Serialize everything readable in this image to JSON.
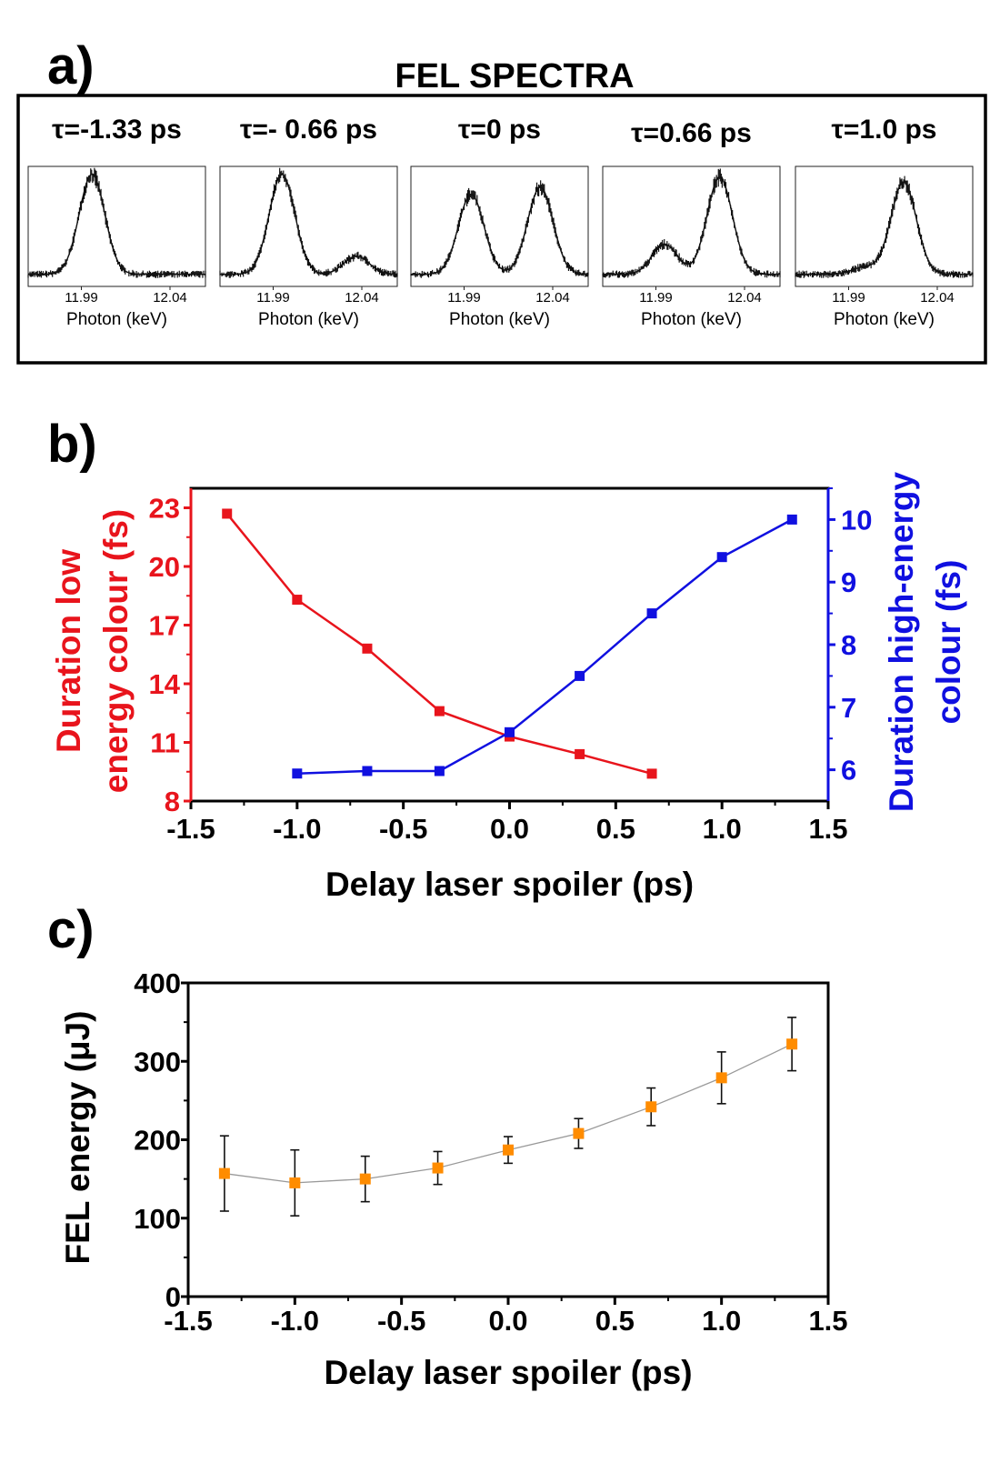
{
  "chart_data": [
    {
      "panel_label": "a)",
      "title": "FEL SPECTRA",
      "type": "line",
      "colors": {
        "frame": "#000000",
        "data": "#111111"
      },
      "subplots": [
        {
          "label": "τ=-1.33 ps",
          "xlabel": "Photon (keV)",
          "xticks": [
            "11.99",
            "12.04"
          ],
          "xlim": [
            11.96,
            12.06
          ],
          "peaks": [
            {
              "center_keV": 11.996,
              "relative_intensity": 1.0
            }
          ]
        },
        {
          "label": "τ=- 0.66 ps",
          "xlabel": "Photon (keV)",
          "xticks": [
            "11.99",
            "12.04"
          ],
          "xlim": [
            11.96,
            12.06
          ],
          "peaks": [
            {
              "center_keV": 11.995,
              "relative_intensity": 1.0
            },
            {
              "center_keV": 12.037,
              "relative_intensity": 0.18
            }
          ]
        },
        {
          "label": "τ=0 ps",
          "xlabel": "Photon (keV)",
          "xticks": [
            "11.99",
            "12.04"
          ],
          "xlim": [
            11.96,
            12.06
          ],
          "peaks": [
            {
              "center_keV": 11.994,
              "relative_intensity": 0.8
            },
            {
              "center_keV": 12.033,
              "relative_intensity": 0.87
            }
          ]
        },
        {
          "label": "τ=0.66 ps",
          "xlabel": "Photon (keV)",
          "xticks": [
            "11.99",
            "12.04"
          ],
          "xlim": [
            11.96,
            12.06
          ],
          "peaks": [
            {
              "center_keV": 11.995,
              "relative_intensity": 0.3
            },
            {
              "center_keV": 12.026,
              "relative_intensity": 0.97
            }
          ]
        },
        {
          "label": "τ=1.0 ps",
          "xlabel": "Photon (keV)",
          "xticks": [
            "11.99",
            "12.04"
          ],
          "xlim": [
            11.96,
            12.06
          ],
          "peaks": [
            {
              "center_keV": 11.999,
              "relative_intensity": 0.07
            },
            {
              "center_keV": 12.021,
              "relative_intensity": 0.92
            }
          ]
        }
      ]
    },
    {
      "panel_label": "b)",
      "type": "line",
      "xlabel": "Delay laser spoiler (ps)",
      "xlim": [
        -1.5,
        1.5
      ],
      "xticks": [
        "-1.5",
        "-1.0",
        "-0.5",
        "0.0",
        "0.5",
        "1.0",
        "1.5"
      ],
      "y_left": {
        "label_lines": [
          "Duration low",
          "energy colour (fs)"
        ],
        "ylim": [
          8,
          24
        ],
        "ticks": [
          "8",
          "11",
          "14",
          "17",
          "20",
          "23"
        ],
        "color": "#e8141c"
      },
      "y_right": {
        "label_lines": [
          "Duration high-energy",
          "colour (fs)"
        ],
        "ylim": [
          5.5,
          10.5
        ],
        "ticks": [
          "6",
          "7",
          "8",
          "9",
          "10"
        ],
        "color": "#1010e0"
      },
      "series": [
        {
          "axis": "left",
          "color": "#e8141c",
          "x": [
            -1.33,
            -1.0,
            -0.67,
            -0.33,
            0.0,
            0.33,
            0.67
          ],
          "y": [
            22.7,
            18.3,
            15.8,
            12.6,
            11.3,
            10.4,
            9.4
          ]
        },
        {
          "axis": "right",
          "color": "#1010e0",
          "x": [
            -1.0,
            -0.67,
            -0.33,
            0.0,
            0.33,
            0.67,
            1.0,
            1.33
          ],
          "y": [
            5.94,
            5.98,
            5.98,
            6.6,
            7.5,
            8.5,
            9.4,
            10.0
          ]
        }
      ],
      "grid": false
    },
    {
      "panel_label": "c)",
      "type": "scatter",
      "xlabel": "Delay laser spoiler (ps)",
      "ylabel": "FEL energy (μJ)",
      "xlim": [
        -1.5,
        1.5
      ],
      "ylim": [
        0,
        400
      ],
      "xticks": [
        "-1.5",
        "-1.0",
        "-0.5",
        "0.0",
        "0.5",
        "1.0",
        "1.5"
      ],
      "yticks": [
        "0",
        "100",
        "200",
        "300",
        "400"
      ],
      "series": [
        {
          "color": "#ff8c00",
          "line_color": "#999999",
          "x": [
            -1.33,
            -1.0,
            -0.67,
            -0.33,
            0.0,
            0.33,
            0.67,
            1.0,
            1.33
          ],
          "y": [
            157,
            145,
            150,
            164,
            187,
            208,
            242,
            279,
            322
          ],
          "error": [
            48,
            42,
            29,
            21,
            17,
            19,
            24,
            33,
            34
          ]
        }
      ],
      "grid": false
    }
  ]
}
